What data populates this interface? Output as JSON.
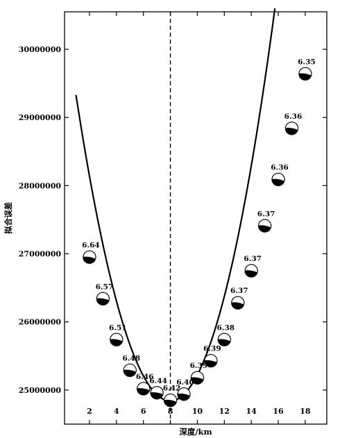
{
  "chart_data": {
    "type": "scatter",
    "xlabel": "深度/km",
    "ylabel": "拟合误差",
    "xlim": [
      0.15,
      19.6
    ],
    "ylim": [
      24500000,
      30550000
    ],
    "x_ticks": [
      2,
      4,
      6,
      8,
      10,
      12,
      14,
      16,
      18
    ],
    "y_ticks": [
      25000000,
      26000000,
      27000000,
      28000000,
      29000000,
      30000000
    ],
    "x_tick_labels": [
      "2",
      "4",
      "6",
      "8",
      "10",
      "12",
      "14",
      "16",
      "18"
    ],
    "y_tick_labels": [
      "25000000",
      "26000000",
      "27000000",
      "28000000",
      "29000000",
      "30000000"
    ],
    "reference_line_x": 8,
    "fit_curve": {
      "x_range": [
        1,
        15.75
      ],
      "vertex_x": 8,
      "vertex_y": 24840000,
      "left_y_at_1": 29330000,
      "right_y_at_15.75": 30600000
    },
    "points": [
      {
        "x": 2,
        "y": 26950000,
        "mag": "6.64"
      },
      {
        "x": 3,
        "y": 26340000,
        "mag": "6.57"
      },
      {
        "x": 4,
        "y": 25740000,
        "mag": "6.51"
      },
      {
        "x": 5,
        "y": 25290000,
        "mag": "6.48"
      },
      {
        "x": 6,
        "y": 25020000,
        "mag": "6.46"
      },
      {
        "x": 7,
        "y": 24960000,
        "mag": "6.44"
      },
      {
        "x": 8,
        "y": 24850000,
        "mag": "6.42"
      },
      {
        "x": 9,
        "y": 24940000,
        "mag": "6.40"
      },
      {
        "x": 10,
        "y": 25180000,
        "mag": "6.39"
      },
      {
        "x": 11,
        "y": 25430000,
        "mag": "6.39"
      },
      {
        "x": 12,
        "y": 25740000,
        "mag": "6.38"
      },
      {
        "x": 13,
        "y": 26280000,
        "mag": "6.37"
      },
      {
        "x": 14,
        "y": 26750000,
        "mag": "6.37"
      },
      {
        "x": 15,
        "y": 27410000,
        "mag": "6.37"
      },
      {
        "x": 16,
        "y": 28090000,
        "mag": "6.36"
      },
      {
        "x": 17,
        "y": 28840000,
        "mag": "6.36"
      },
      {
        "x": 18,
        "y": 29640000,
        "mag": "6.35"
      }
    ],
    "grid": false,
    "legend": "none"
  }
}
